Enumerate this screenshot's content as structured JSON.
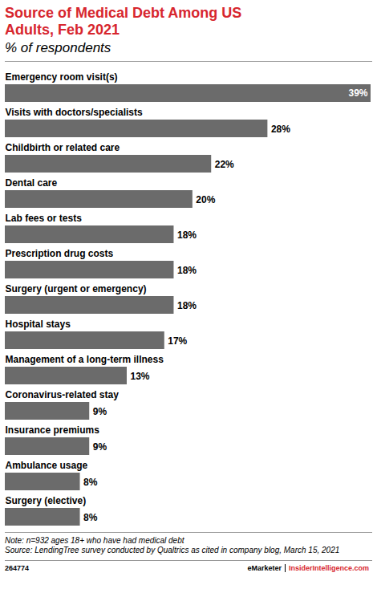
{
  "chart_data": {
    "type": "bar",
    "orientation": "horizontal",
    "title": "Source of Medical Debt Among US Adults, Feb 2021",
    "subtitle": "% of respondents",
    "categories": [
      "Emergency room visit(s)",
      "Visits with doctors/specialists",
      "Childbirth or related care",
      "Dental care",
      "Lab fees or tests",
      "Prescription drug costs",
      "Surgery (urgent or emergency)",
      "Hospital stays",
      "Management of a long-term illness",
      "Coronavirus-related stay",
      "Insurance premiums",
      "Ambulance usage",
      "Surgery (elective)"
    ],
    "values": [
      39,
      28,
      22,
      20,
      18,
      18,
      18,
      17,
      13,
      9,
      9,
      8,
      8
    ],
    "value_labels": [
      "39%",
      "28%",
      "22%",
      "20%",
      "18%",
      "18%",
      "18%",
      "17%",
      "13%",
      "9%",
      "9%",
      "8%",
      "8%"
    ],
    "color": "#6b6b6b",
    "xlim": [
      0,
      39
    ],
    "xticks": [],
    "grid": false,
    "data_labels": true,
    "tick_labels": false,
    "notes": [
      "Note: n=932 ages 18+ who have had medical debt",
      "Source: LendingTree survey conducted by Qualtrics as cited in company blog, March 15, 2021"
    ],
    "footer": {
      "id": "264774",
      "brand": "eMarketer",
      "site": "InsiderIntelligence.com"
    }
  }
}
